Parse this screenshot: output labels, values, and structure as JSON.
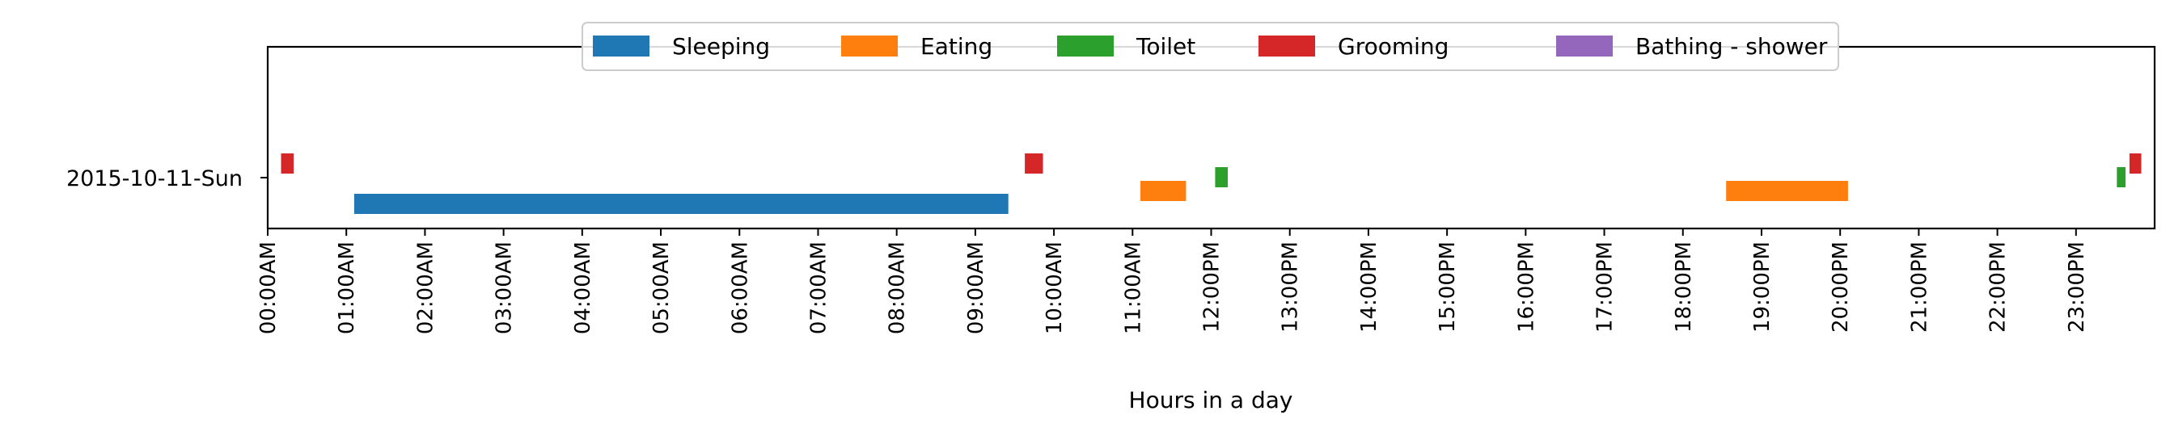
{
  "chart_data": {
    "type": "timeline",
    "title": "",
    "xlabel": "Hours in a day",
    "ylabel": "",
    "y_categories": [
      "2015-10-11-Sun"
    ],
    "x_unit": "hours",
    "xlim": [
      0,
      24
    ],
    "x_ticks": [
      {
        "value": 0,
        "label": "00:00AM"
      },
      {
        "value": 1,
        "label": "01:00AM"
      },
      {
        "value": 2,
        "label": "02:00AM"
      },
      {
        "value": 3,
        "label": "03:00AM"
      },
      {
        "value": 4,
        "label": "04:00AM"
      },
      {
        "value": 5,
        "label": "05:00AM"
      },
      {
        "value": 6,
        "label": "06:00AM"
      },
      {
        "value": 7,
        "label": "07:00AM"
      },
      {
        "value": 8,
        "label": "08:00AM"
      },
      {
        "value": 9,
        "label": "09:00AM"
      },
      {
        "value": 10,
        "label": "10:00AM"
      },
      {
        "value": 11,
        "label": "11:00AM"
      },
      {
        "value": 12,
        "label": "12:00PM"
      },
      {
        "value": 13,
        "label": "13:00PM"
      },
      {
        "value": 14,
        "label": "14:00PM"
      },
      {
        "value": 15,
        "label": "15:00PM"
      },
      {
        "value": 16,
        "label": "16:00PM"
      },
      {
        "value": 17,
        "label": "17:00PM"
      },
      {
        "value": 18,
        "label": "18:00PM"
      },
      {
        "value": 19,
        "label": "19:00PM"
      },
      {
        "value": 20,
        "label": "20:00PM"
      },
      {
        "value": 21,
        "label": "21:00PM"
      },
      {
        "value": 22,
        "label": "22:00PM"
      },
      {
        "value": 23,
        "label": "23:00PM"
      }
    ],
    "legend_position": "top-center",
    "legend": [
      {
        "name": "Sleeping",
        "color": "#1f77b4"
      },
      {
        "name": "Eating",
        "color": "#ff7f0e"
      },
      {
        "name": "Toilet",
        "color": "#2ca02c"
      },
      {
        "name": "Grooming",
        "color": "#d62728"
      },
      {
        "name": "Bathing - shower",
        "color": "#9467bd"
      }
    ],
    "series": [
      {
        "activity": "Grooming",
        "row": 0,
        "start": 0.17,
        "end": 0.33
      },
      {
        "activity": "Sleeping",
        "row": 0,
        "start": 1.1,
        "end": 9.42
      },
      {
        "activity": "Grooming",
        "row": 0,
        "start": 9.63,
        "end": 9.86
      },
      {
        "activity": "Eating",
        "row": 0,
        "start": 11.1,
        "end": 11.68
      },
      {
        "activity": "Toilet",
        "row": 0,
        "start": 12.05,
        "end": 12.21
      },
      {
        "activity": "Eating",
        "row": 0,
        "start": 18.55,
        "end": 20.1
      },
      {
        "activity": "Toilet",
        "row": 0,
        "start": 23.52,
        "end": 23.63
      },
      {
        "activity": "Grooming",
        "row": 0,
        "start": 23.68,
        "end": 23.83
      }
    ]
  }
}
